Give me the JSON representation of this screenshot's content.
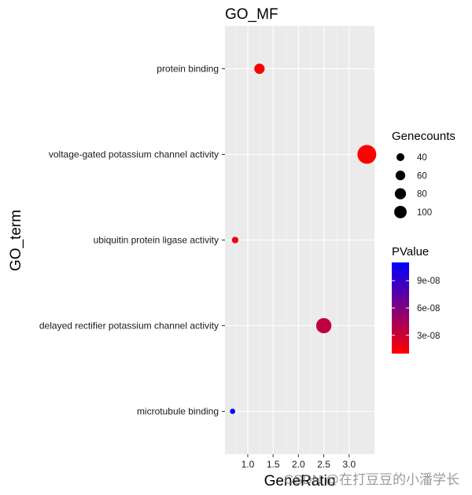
{
  "chart_data": {
    "type": "scatter",
    "title": "GO_MF",
    "xlabel": "GeneRatio",
    "ylabel": "GO_term",
    "xlim": [
      0.55,
      3.5
    ],
    "xticks": [
      "1.0",
      "1.5",
      "2.0",
      "2.5",
      "3.0"
    ],
    "xtick_values": [
      1.0,
      1.5,
      2.0,
      2.5,
      3.0
    ],
    "categories": [
      "protein binding",
      "voltage-gated potassium channel activity",
      "ubiquitin protein ligase activity",
      "delayed rectifier potassium channel activity",
      "microtubule binding"
    ],
    "points": [
      {
        "term": "protein binding",
        "gene_ratio": 1.23,
        "genecounts": 30,
        "pvalue": 1.2e-08
      },
      {
        "term": "voltage-gated potassium channel activity",
        "gene_ratio": 3.35,
        "genecounts": 100,
        "pvalue": 1e-08
      },
      {
        "term": "ubiquitin protein ligase activity",
        "gene_ratio": 0.75,
        "genecounts": 12,
        "pvalue": 1.5e-08
      },
      {
        "term": "delayed rectifier potassium channel activity",
        "gene_ratio": 2.5,
        "genecounts": 65,
        "pvalue": 3.5e-08
      },
      {
        "term": "microtubule binding",
        "gene_ratio": 0.7,
        "genecounts": 8,
        "pvalue": 1.05e-07
      }
    ],
    "grid": true,
    "legend": {
      "size_title": "Genecounts",
      "size_values": [
        40,
        60,
        80,
        100
      ],
      "size_labels": [
        "40",
        "60",
        "80",
        "100"
      ],
      "color_title": "PValue",
      "color_labels": [
        "9e-08",
        "6e-08",
        "3e-08"
      ],
      "color_values": [
        9e-08,
        6e-08,
        3e-08
      ],
      "color_range": [
        1e-08,
        1.1e-07
      ],
      "color_low": "#ff0000",
      "color_high": "#0000ff",
      "placement": "right"
    }
  },
  "watermark": "CSDN @在打豆豆的小潘学长",
  "colors": {
    "panel": "#ebebeb",
    "grid_major": "#ffffff",
    "grid_minor": "#f5f5f5",
    "tick": "#333333"
  }
}
